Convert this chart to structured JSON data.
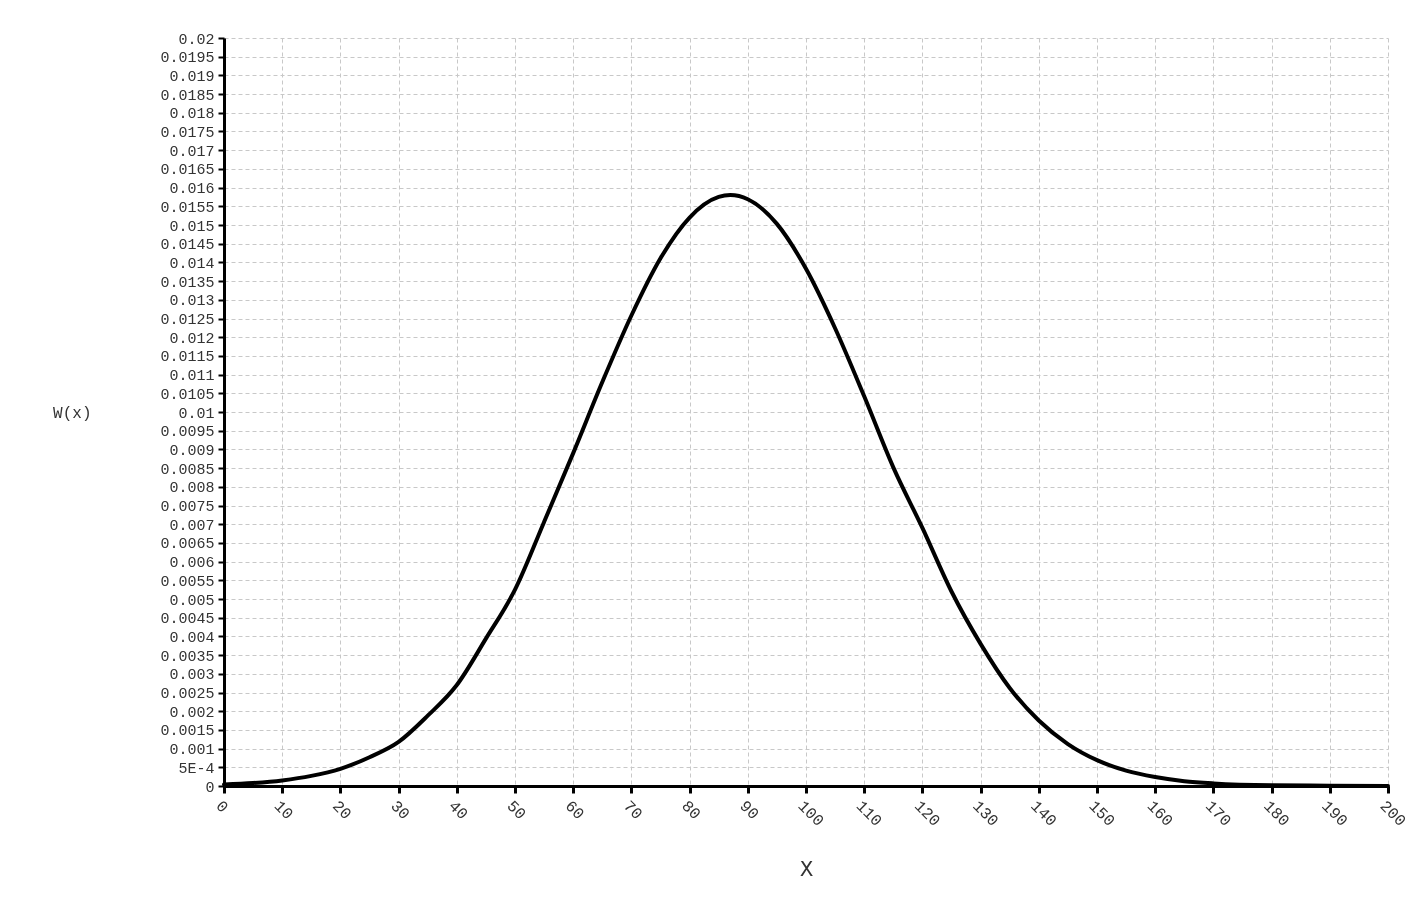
{
  "chart_data": {
    "type": "line",
    "xlabel": "X",
    "ylabel": "W(x)",
    "x": [
      0,
      5,
      10,
      15,
      20,
      25,
      30,
      35,
      40,
      45,
      50,
      55,
      60,
      65,
      70,
      75,
      80,
      85,
      87,
      90,
      95,
      100,
      105,
      110,
      115,
      120,
      125,
      130,
      135,
      140,
      145,
      150,
      155,
      160,
      165,
      170,
      180,
      190,
      200
    ],
    "series": [
      {
        "color": "#000000",
        "values": [
          4e-05,
          8e-05,
          0.00015,
          0.00027,
          0.00046,
          0.00077,
          0.00118,
          0.00188,
          0.0027,
          0.00394,
          0.00525,
          0.00706,
          0.0089,
          0.0108,
          0.01258,
          0.01411,
          0.0152,
          0.01575,
          0.0158,
          0.01569,
          0.01503,
          0.01383,
          0.01224,
          0.01042,
          0.00852,
          0.0069,
          0.0052,
          0.0038,
          0.00262,
          0.00175,
          0.00112,
          0.00069,
          0.00041,
          0.00024,
          0.00013,
          7e-05,
          2e-05,
          1e-05,
          0
        ]
      }
    ],
    "xlim": [
      0,
      200
    ],
    "xticks": [
      0,
      10,
      20,
      30,
      40,
      50,
      60,
      70,
      80,
      90,
      100,
      110,
      120,
      130,
      140,
      150,
      160,
      170,
      180,
      190,
      200
    ],
    "ylim": [
      0,
      0.02
    ],
    "yticks": [
      0,
      {
        "value": 0.0005,
        "label": "5E-4"
      },
      0.001,
      0.0015,
      0.002,
      0.0025,
      0.003,
      0.0035,
      0.004,
      0.0045,
      0.005,
      0.0055,
      0.006,
      0.0065,
      0.007,
      0.0075,
      0.008,
      0.0085,
      0.009,
      0.0095,
      0.01,
      0.0105,
      0.011,
      0.0115,
      0.012,
      0.0125,
      0.013,
      0.0135,
      0.014,
      0.0145,
      0.015,
      0.0155,
      0.016,
      0.0165,
      0.017,
      0.0175,
      0.018,
      0.0185,
      0.019,
      0.0195,
      0.02
    ],
    "grid": true,
    "marker": "none",
    "line_style": "solid"
  }
}
